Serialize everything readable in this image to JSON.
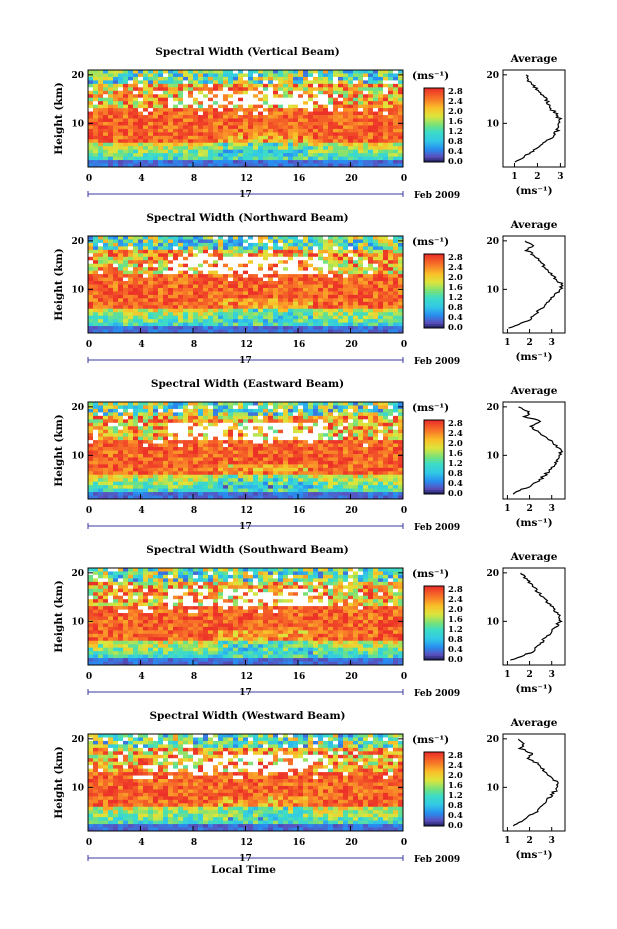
{
  "chart_data": [
    {
      "type": "heatmap",
      "title": "Spectral Width (Vertical Beam)",
      "xlabel": "",
      "ylabel": "Height (km)",
      "x_ticks": [
        "0",
        "4",
        "8",
        "12",
        "16",
        "20",
        "0"
      ],
      "y_ticks": [
        "10",
        "20"
      ],
      "date_day": "17",
      "date_month_year": "Feb 2009",
      "colorbar": {
        "unit": "(ms⁻¹)",
        "ticks": [
          "2.8",
          "2.4",
          "2.0",
          "1.6",
          "1.2",
          "0.8",
          "0.4",
          "0.0"
        ]
      },
      "avg_profile": {
        "title": "Average",
        "xlabel": "(ms⁻¹)",
        "x_ticks": [
          "1",
          "2",
          "3"
        ],
        "y_ticks": [
          "10",
          "20"
        ],
        "xlim": [
          0.5,
          3.2
        ],
        "ylim": [
          1,
          21
        ],
        "height": [
          2,
          3,
          4,
          5,
          6,
          7,
          8,
          9,
          10,
          11,
          12,
          13,
          14,
          15,
          16,
          17,
          18,
          19,
          20
        ],
        "value": [
          1.0,
          1.4,
          1.7,
          2.0,
          2.3,
          2.6,
          2.8,
          2.9,
          3.0,
          2.95,
          2.8,
          2.6,
          2.5,
          2.4,
          2.2,
          2.0,
          1.8,
          1.6,
          1.5
        ]
      }
    },
    {
      "type": "heatmap",
      "title": "Spectral Width (Northward Beam)",
      "xlabel": "",
      "ylabel": "Height (km)",
      "x_ticks": [
        "0",
        "4",
        "8",
        "12",
        "16",
        "20",
        "0"
      ],
      "y_ticks": [
        "10",
        "20"
      ],
      "date_day": "17",
      "date_month_year": "Feb 2009",
      "colorbar": {
        "unit": "(ms⁻¹)",
        "ticks": [
          "2.8",
          "2.4",
          "2.0",
          "1.6",
          "1.2",
          "0.8",
          "0.4",
          "0.0"
        ]
      },
      "avg_profile": {
        "title": "Average",
        "xlabel": "(ms⁻¹)",
        "x_ticks": [
          "1",
          "2",
          "3"
        ],
        "y_ticks": [
          "10",
          "20"
        ],
        "xlim": [
          0.8,
          3.6
        ],
        "ylim": [
          1,
          21
        ],
        "height": [
          2,
          3,
          4,
          5,
          6,
          7,
          8,
          9,
          10,
          11,
          12,
          13,
          14,
          15,
          16,
          17,
          18,
          19,
          20
        ],
        "value": [
          1.1,
          1.6,
          2.1,
          2.3,
          2.5,
          2.8,
          3.0,
          3.2,
          3.4,
          3.5,
          3.2,
          3.0,
          2.8,
          2.6,
          2.4,
          2.2,
          1.9,
          2.1,
          1.8
        ]
      }
    },
    {
      "type": "heatmap",
      "title": "Spectral Width (Eastward Beam)",
      "xlabel": "",
      "ylabel": "Height (km)",
      "x_ticks": [
        "0",
        "4",
        "8",
        "12",
        "16",
        "20",
        "0"
      ],
      "y_ticks": [
        "10",
        "20"
      ],
      "date_day": "17",
      "date_month_year": "Feb 2009",
      "colorbar": {
        "unit": "(ms⁻¹)",
        "ticks": [
          "2.8",
          "2.4",
          "2.0",
          "1.6",
          "1.2",
          "0.8",
          "0.4",
          "0.0"
        ]
      },
      "avg_profile": {
        "title": "Average",
        "xlabel": "(ms⁻¹)",
        "x_ticks": [
          "1",
          "2",
          "3"
        ],
        "y_ticks": [
          "10",
          "20"
        ],
        "xlim": [
          0.8,
          3.6
        ],
        "ylim": [
          1,
          21
        ],
        "height": [
          2,
          3,
          4,
          5,
          6,
          7,
          8,
          9,
          10,
          11,
          12,
          13,
          14,
          15,
          16,
          17,
          18,
          19,
          20
        ],
        "value": [
          1.2,
          1.7,
          2.2,
          2.5,
          2.7,
          2.9,
          3.1,
          3.3,
          3.4,
          3.45,
          3.2,
          3.0,
          2.7,
          2.3,
          2.0,
          2.5,
          1.8,
          2.0,
          1.5
        ]
      }
    },
    {
      "type": "heatmap",
      "title": "Spectral Width (Southward Beam)",
      "xlabel": "",
      "ylabel": "Height (km)",
      "x_ticks": [
        "0",
        "4",
        "8",
        "12",
        "16",
        "20",
        "0"
      ],
      "y_ticks": [
        "10",
        "20"
      ],
      "date_day": "17",
      "date_month_year": "Feb 2009",
      "colorbar": {
        "unit": "(ms⁻¹)",
        "ticks": [
          "2.8",
          "2.4",
          "2.0",
          "1.6",
          "1.2",
          "0.8",
          "0.4",
          "0.0"
        ]
      },
      "avg_profile": {
        "title": "Average",
        "xlabel": "(ms⁻¹)",
        "x_ticks": [
          "1",
          "2",
          "3"
        ],
        "y_ticks": [
          "10",
          "20"
        ],
        "xlim": [
          0.8,
          3.6
        ],
        "ylim": [
          1,
          21
        ],
        "height": [
          2,
          3,
          4,
          5,
          6,
          7,
          8,
          9,
          10,
          11,
          12,
          13,
          14,
          15,
          16,
          17,
          18,
          19,
          20
        ],
        "value": [
          1.2,
          1.8,
          2.2,
          2.4,
          2.6,
          2.8,
          3.0,
          3.2,
          3.4,
          3.4,
          3.2,
          3.0,
          2.8,
          2.6,
          2.4,
          2.2,
          2.0,
          1.8,
          1.6
        ]
      }
    },
    {
      "type": "heatmap",
      "title": "Spectral Width (Westward Beam)",
      "xlabel": "Local Time",
      "ylabel": "Height (km)",
      "x_ticks": [
        "0",
        "4",
        "8",
        "12",
        "16",
        "20",
        "0"
      ],
      "y_ticks": [
        "10",
        "20"
      ],
      "date_day": "17",
      "date_month_year": "Feb 2009",
      "colorbar": {
        "unit": "(ms⁻¹)",
        "ticks": [
          "2.8",
          "2.4",
          "2.0",
          "1.6",
          "1.2",
          "0.8",
          "0.4",
          "0.0"
        ]
      },
      "avg_profile": {
        "title": "Average",
        "xlabel": "(ms⁻¹)",
        "x_ticks": [
          "1",
          "2",
          "3"
        ],
        "y_ticks": [
          "10",
          "20"
        ],
        "xlim": [
          0.8,
          3.6
        ],
        "ylim": [
          1,
          21
        ],
        "height": [
          2,
          3,
          4,
          5,
          6,
          7,
          8,
          9,
          10,
          11,
          12,
          13,
          14,
          15,
          16,
          17,
          18,
          19,
          20
        ],
        "value": [
          1.2,
          1.7,
          2.0,
          2.3,
          2.5,
          2.7,
          2.9,
          3.1,
          3.3,
          3.3,
          3.0,
          2.8,
          2.5,
          2.3,
          1.9,
          2.1,
          1.6,
          1.8,
          1.5
        ]
      }
    }
  ]
}
